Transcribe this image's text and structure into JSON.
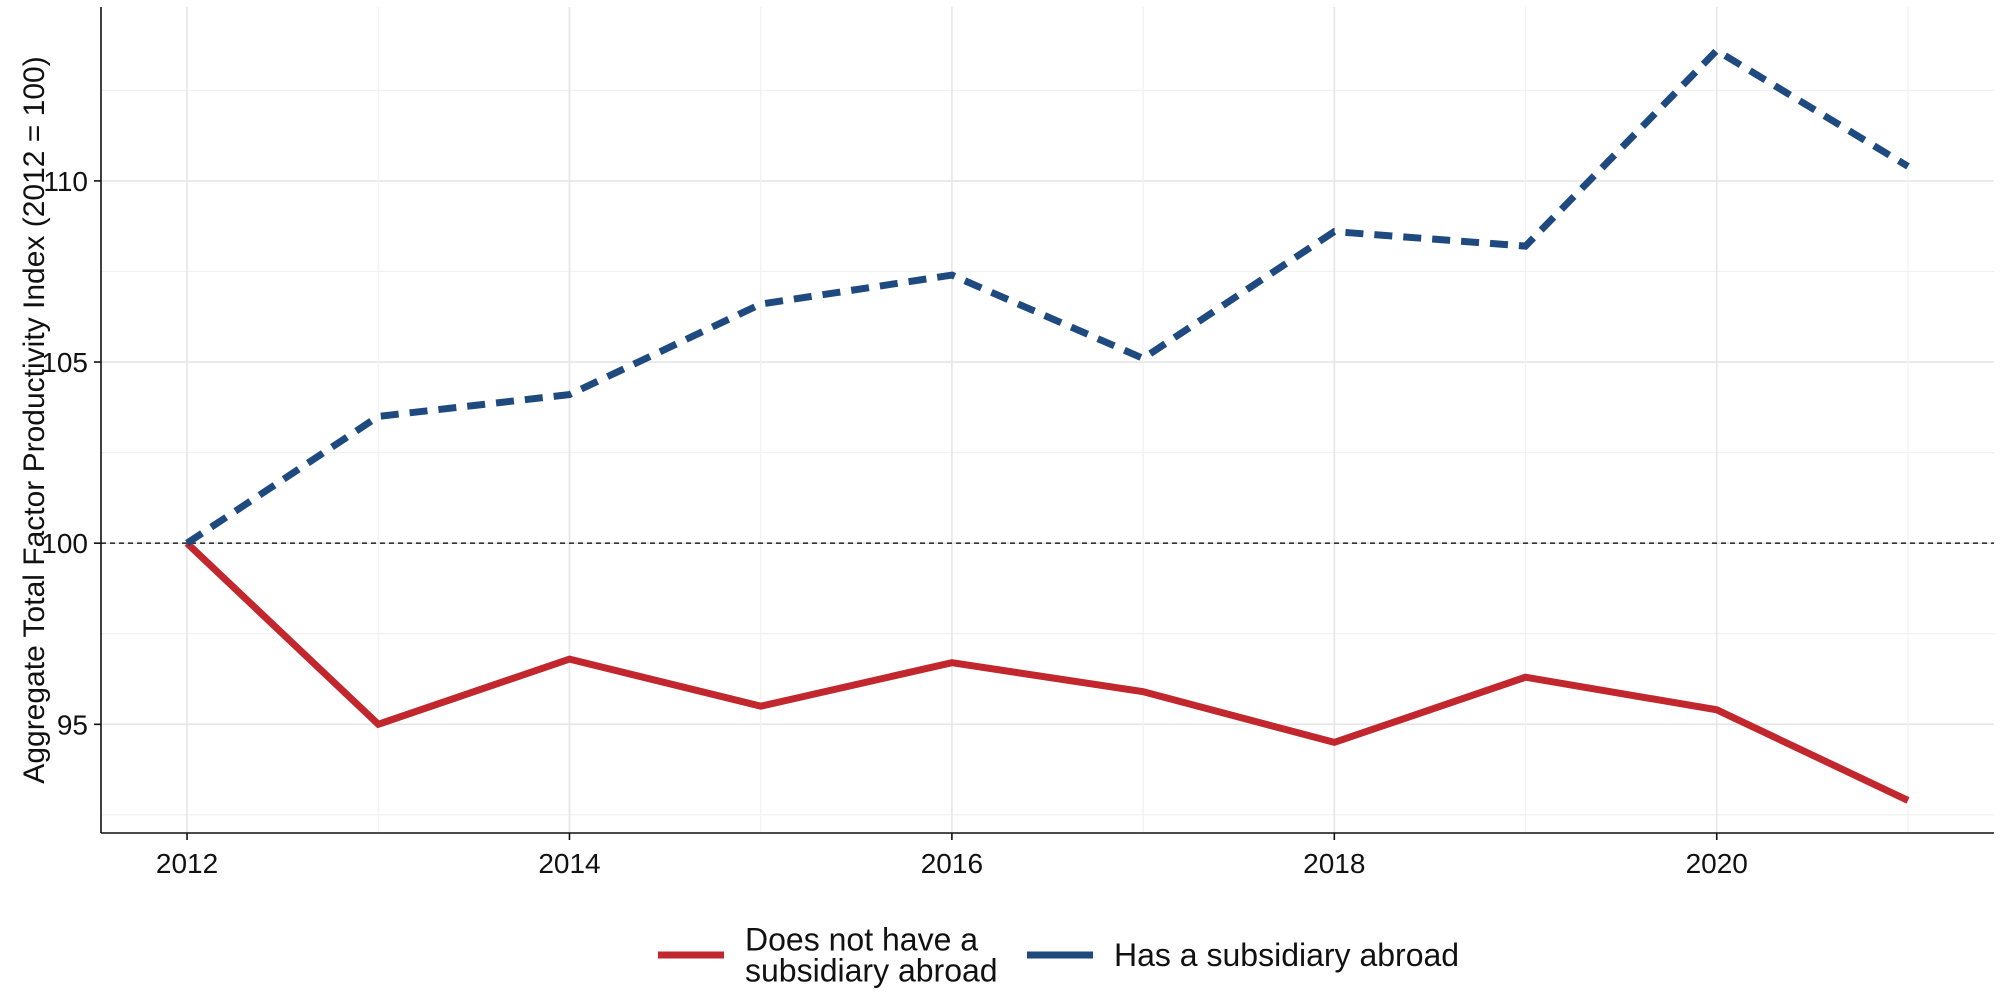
{
  "chart_data": {
    "type": "line",
    "title": "",
    "xlabel": "",
    "ylabel": "Aggregate Total Factor Productivity Index (2012 = 100)",
    "x": [
      2012,
      2013,
      2014,
      2015,
      2016,
      2017,
      2018,
      2019,
      2020,
      2021
    ],
    "xlim": [
      2011.55,
      2021.45
    ],
    "ylim": [
      92.0,
      114.8
    ],
    "xticks": [
      2012,
      2014,
      2016,
      2018,
      2020
    ],
    "yticks": [
      95,
      100,
      105,
      110
    ],
    "grid": true,
    "reference_line": {
      "y": 100,
      "style": "dashed"
    },
    "legend": {
      "position": "bottom"
    },
    "series": [
      {
        "name": "Does not have a subsidiary abroad",
        "name_lines": [
          "Does not have a",
          "subsidiary abroad"
        ],
        "color": "#c1272d",
        "style": "solid",
        "values": [
          100,
          95.0,
          96.8,
          95.5,
          96.7,
          95.9,
          94.5,
          96.3,
          95.4,
          92.9
        ]
      },
      {
        "name": "Has a subsidiary abroad",
        "name_lines": [
          "Has a subsidiary abroad"
        ],
        "color": "#1f4a7f",
        "style": "dashed",
        "values": [
          100,
          103.5,
          104.1,
          106.6,
          107.4,
          105.1,
          108.6,
          108.2,
          113.6,
          110.4
        ]
      }
    ]
  }
}
